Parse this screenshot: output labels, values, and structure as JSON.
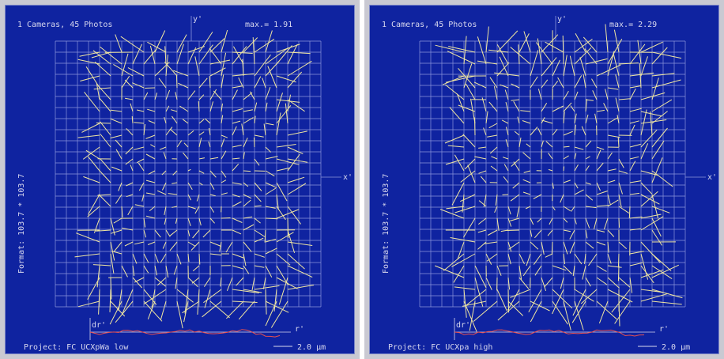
{
  "colors": {
    "background": "#0f23a0",
    "grid": "#8c96dc",
    "vectors": "#f0e6a0",
    "radial_curve": "#e85050",
    "text": "#d8d8ee"
  },
  "panels": [
    {
      "header": "1 Cameras, 45 Photos",
      "y_axis_label": "y'",
      "max_label": "max.= 1.91",
      "x_axis_label": "x'",
      "format_label": "Format: 103.7 * 103.7",
      "dr_label": "dr'",
      "r_label": "r'",
      "project_label": "Project: FC UCXpWa low",
      "scale_label": "2.0 µm"
    },
    {
      "header": "1 Cameras, 45 Photos",
      "y_axis_label": "y'",
      "max_label": "max.= 2.29",
      "x_axis_label": "x'",
      "format_label": "Format: 103.7 * 103.7",
      "dr_label": "dr'",
      "r_label": "r'",
      "project_label": "Project: FC UCXpa high",
      "scale_label": "2.0 µm"
    }
  ]
}
